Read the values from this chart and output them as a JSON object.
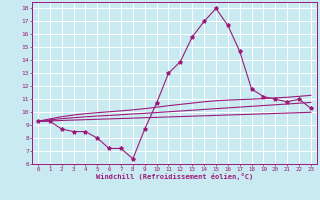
{
  "xlabel": "Windchill (Refroidissement éolien,°C)",
  "xlim": [
    -0.5,
    23.5
  ],
  "ylim": [
    6,
    18.5
  ],
  "xticks": [
    0,
    1,
    2,
    3,
    4,
    5,
    6,
    7,
    8,
    9,
    10,
    11,
    12,
    13,
    14,
    15,
    16,
    17,
    18,
    19,
    20,
    21,
    22,
    23
  ],
  "yticks": [
    6,
    7,
    8,
    9,
    10,
    11,
    12,
    13,
    14,
    15,
    16,
    17,
    18
  ],
  "bg_color": "#c8eaf0",
  "grid_color": "#ffffff",
  "line_color": "#9b1b7b",
  "main_data": [
    9.3,
    9.3,
    8.7,
    8.5,
    8.5,
    8.0,
    7.2,
    7.2,
    6.4,
    8.7,
    10.7,
    13.0,
    13.9,
    15.8,
    17.0,
    18.0,
    16.7,
    14.7,
    11.8,
    11.2,
    11.0,
    10.8,
    11.0,
    10.3
  ],
  "trend1": [
    9.3,
    9.48,
    9.65,
    9.78,
    9.88,
    9.96,
    10.03,
    10.1,
    10.18,
    10.27,
    10.38,
    10.5,
    10.6,
    10.7,
    10.8,
    10.88,
    10.93,
    10.97,
    11.0,
    11.05,
    11.1,
    11.15,
    11.22,
    11.3
  ],
  "trend2": [
    9.3,
    9.4,
    9.5,
    9.57,
    9.64,
    9.7,
    9.75,
    9.8,
    9.86,
    9.91,
    9.97,
    10.03,
    10.09,
    10.15,
    10.21,
    10.27,
    10.33,
    10.39,
    10.45,
    10.51,
    10.57,
    10.63,
    10.69,
    10.75
  ],
  "trend3": [
    9.3,
    9.33,
    9.36,
    9.39,
    9.42,
    9.45,
    9.48,
    9.51,
    9.54,
    9.57,
    9.6,
    9.63,
    9.66,
    9.69,
    9.72,
    9.75,
    9.78,
    9.81,
    9.84,
    9.87,
    9.9,
    9.93,
    9.96,
    9.99
  ]
}
